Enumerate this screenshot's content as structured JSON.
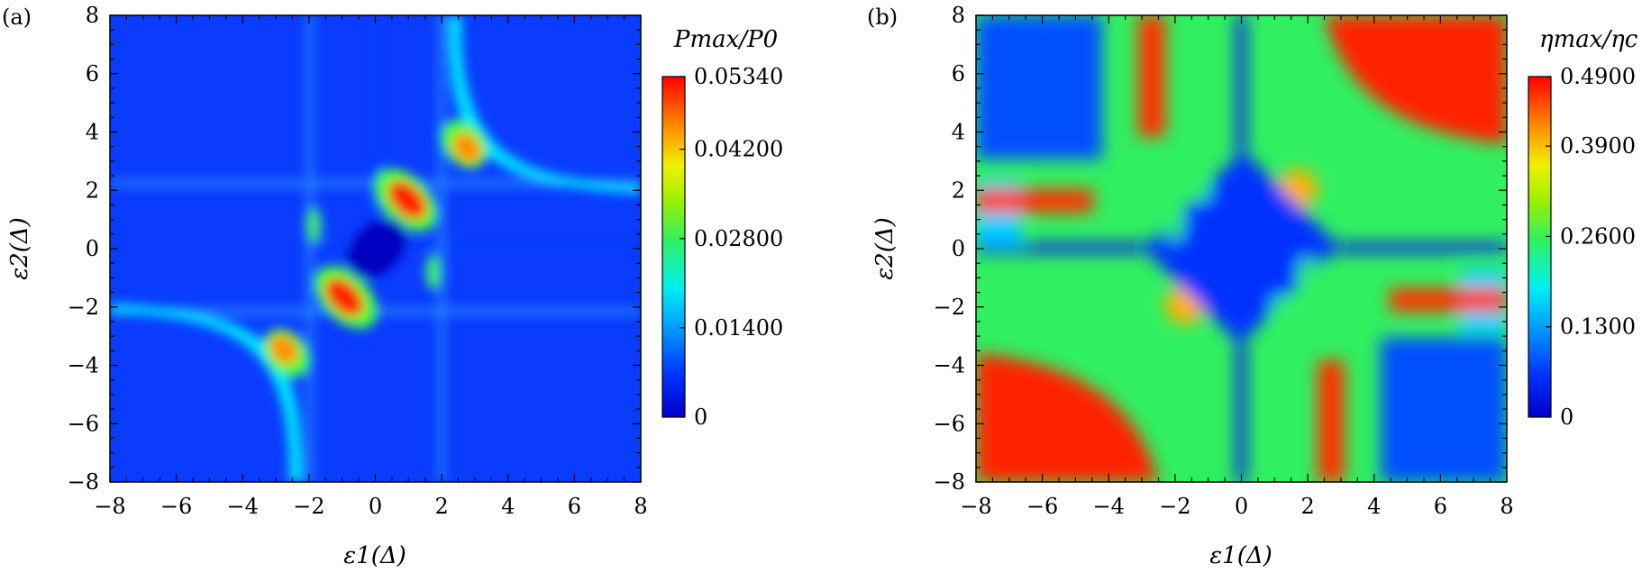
{
  "chart_data": [
    {
      "panel_label": "(a)",
      "type": "heatmap",
      "xlabel": "ε1(Δ)",
      "ylabel": "ε2(Δ)",
      "x_ticks": [
        "−8",
        "−6",
        "−4",
        "−2",
        "0",
        "2",
        "4",
        "6",
        "8"
      ],
      "y_ticks": [
        "8",
        "6",
        "4",
        "2",
        "0",
        "−2",
        "−4",
        "−6",
        "−8"
      ],
      "xlim": [
        -8,
        8
      ],
      "ylim": [
        -8,
        8
      ],
      "colorbar": {
        "title": "Pmax/P0",
        "ticks": [
          "0.05340",
          "0.04200",
          "0.02800",
          "0.01400",
          "0"
        ],
        "range": [
          0,
          0.0534
        ],
        "colormap": "jet"
      },
      "features": [
        {
          "x": 1.2,
          "y": 1.4,
          "value": 0.0534
        },
        {
          "x": -1.4,
          "y": -1.3,
          "value": 0.0534
        },
        {
          "x": 3.2,
          "y": 3.4,
          "value": 0.042
        },
        {
          "x": -3.2,
          "y": -3.4,
          "value": 0.042
        },
        {
          "x": -1.8,
          "y": 0.6,
          "value": 0.028
        },
        {
          "x": 1.8,
          "y": -0.6,
          "value": 0.028
        }
      ]
    },
    {
      "panel_label": "(b)",
      "type": "heatmap",
      "xlabel": "ε1(Δ)",
      "ylabel": "ε2(Δ)",
      "x_ticks": [
        "−8",
        "−6",
        "−4",
        "−2",
        "0",
        "2",
        "4",
        "6",
        "8"
      ],
      "y_ticks": [
        "8",
        "6",
        "4",
        "2",
        "0",
        "−2",
        "−4",
        "−6",
        "−8"
      ],
      "xlim": [
        -8,
        8
      ],
      "ylim": [
        -8,
        8
      ],
      "colorbar": {
        "title": "ηmax/ηc",
        "ticks": [
          "0.4900",
          "0.3900",
          "0.2600",
          "0.1300",
          "0"
        ],
        "range": [
          0,
          0.49
        ],
        "colormap": "jet"
      },
      "features": [
        {
          "x": 5.5,
          "y": 5.5,
          "value": 0.49
        },
        {
          "x": -5.5,
          "y": -5.5,
          "value": 0.49
        },
        {
          "x": -2.2,
          "y": 6.0,
          "value": 0.49
        },
        {
          "x": 2.2,
          "y": -6.0,
          "value": 0.49
        },
        {
          "x": -6.0,
          "y": 2.2,
          "value": 0.49
        },
        {
          "x": 6.0,
          "y": -2.2,
          "value": 0.49
        },
        {
          "x": 1.9,
          "y": 1.9,
          "value": 0.39
        },
        {
          "x": -1.9,
          "y": -1.9,
          "value": 0.39
        }
      ]
    }
  ]
}
